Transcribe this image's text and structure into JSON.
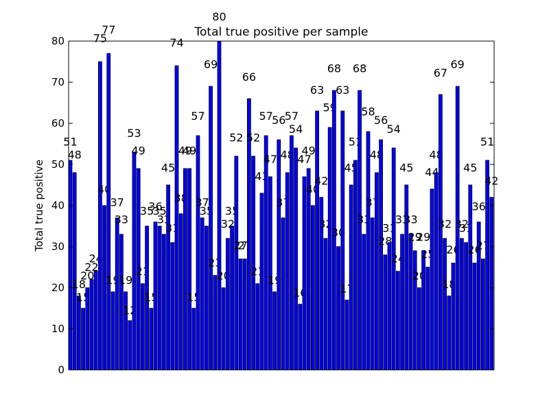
{
  "chart_data": {
    "type": "bar",
    "title": "Total true positive per sample",
    "y_label": "Total true positive",
    "categories": [
      null,
      null,
      null,
      null,
      null,
      null,
      null,
      null,
      null,
      null,
      null,
      null,
      null,
      null,
      null,
      null,
      null,
      null,
      null,
      null,
      null,
      null,
      null,
      null,
      null,
      null,
      null,
      null,
      null,
      null,
      null,
      null,
      null,
      null,
      null,
      null,
      null,
      null,
      null,
      null,
      null,
      null,
      null,
      null,
      null,
      null,
      null,
      null,
      null,
      null,
      null,
      null,
      null,
      null,
      null,
      null,
      null,
      null,
      null,
      null,
      null,
      null,
      null,
      null,
      null,
      null,
      null,
      null,
      null,
      null,
      null,
      null,
      null,
      null,
      null,
      null,
      null,
      null,
      null,
      null,
      null,
      null,
      null,
      null,
      null,
      null,
      null,
      null,
      null,
      null,
      null,
      null,
      null,
      null,
      null,
      null,
      null,
      null,
      null,
      null
    ],
    "values": [
      51,
      48,
      18,
      15,
      20,
      22,
      24,
      75,
      40,
      77,
      19,
      37,
      33,
      19,
      12,
      53,
      49,
      21,
      35,
      15,
      36,
      35,
      33,
      45,
      31,
      74,
      38,
      49,
      49,
      15,
      57,
      37,
      35,
      69,
      23,
      80,
      20,
      32,
      35,
      52,
      27,
      27,
      66,
      52,
      21,
      43,
      57,
      47,
      19,
      56,
      37,
      48,
      57,
      54,
      16,
      47,
      49,
      40,
      63,
      42,
      32,
      59,
      68,
      30,
      63,
      17,
      45,
      51,
      68,
      33,
      58,
      37,
      48,
      56,
      28,
      31,
      54,
      24,
      33,
      45,
      33,
      29,
      20,
      29,
      25,
      44,
      48,
      67,
      32,
      18,
      26,
      69,
      32,
      31,
      45,
      26,
      36,
      27,
      51,
      42
    ],
    "color": "#0000ff",
    "ylim": [
      0,
      80
    ],
    "yticks": [
      0,
      10,
      20,
      30,
      40,
      50,
      60,
      70,
      80
    ]
  }
}
